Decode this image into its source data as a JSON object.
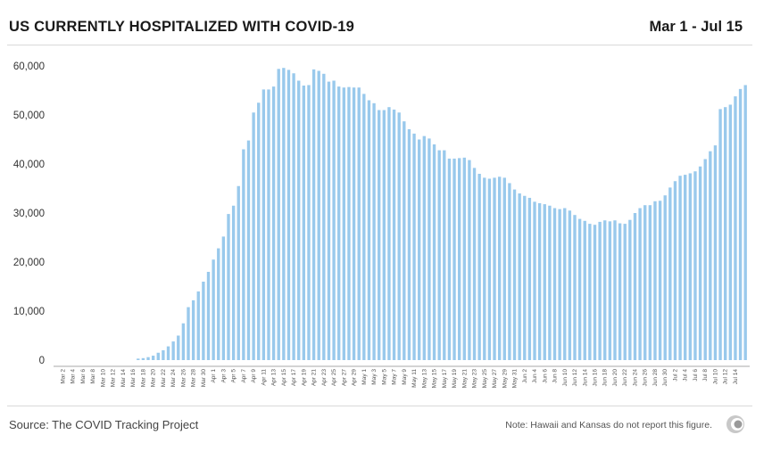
{
  "header": {
    "title": "US CURRENTLY HOSPITALIZED WITH COVID-19",
    "date_range": "Mar 1 - Jul 15"
  },
  "footer": {
    "source": "Source: The COVID Tracking Project",
    "note": "Note: Hawaii and Kansas do not report this figure."
  },
  "logo": {
    "icon": "covid-tracking-project-logo-icon"
  },
  "colors": {
    "bar": "#99c9ec",
    "axis": "#999999",
    "text": "#1a1a1a"
  },
  "chart_data": {
    "type": "bar",
    "title": "US CURRENTLY HOSPITALIZED WITH COVID-19",
    "xlabel": "",
    "ylabel": "",
    "ylim": [
      0,
      60000
    ],
    "yticks": [
      0,
      10000,
      20000,
      30000,
      40000,
      50000,
      60000
    ],
    "ytick_labels": [
      "0",
      "10,000",
      "20,000",
      "30,000",
      "40,000",
      "50,000",
      "60,000"
    ],
    "grid": false,
    "x_tick_labels": [
      "Mar 2",
      "Mar 4",
      "Mar 6",
      "Mar 8",
      "Mar 10",
      "Mar 12",
      "Mar 14",
      "Mar 16",
      "Mar 18",
      "Mar 20",
      "Mar 22",
      "Mar 24",
      "Mar 26",
      "Mar 28",
      "Mar 30",
      "Apr 1",
      "Apr 3",
      "Apr 5",
      "Apr 7",
      "Apr 9",
      "Apr 11",
      "Apr 13",
      "Apr 15",
      "Apr 17",
      "Apr 19",
      "Apr 21",
      "Apr 23",
      "Apr 25",
      "Apr 27",
      "Apr 29",
      "May 1",
      "May 3",
      "May 5",
      "May 7",
      "May 9",
      "May 11",
      "May 13",
      "May 15",
      "May 17",
      "May 19",
      "May 21",
      "May 23",
      "May 25",
      "May 27",
      "May 29",
      "May 31",
      "Jun 2",
      "Jun 4",
      "Jun 6",
      "Jun 8",
      "Jun 10",
      "Jun 12",
      "Jun 14",
      "Jun 16",
      "Jun 18",
      "Jun 20",
      "Jun 22",
      "Jun 24",
      "Jun 26",
      "Jun 28",
      "Jun 30",
      "Jul 2",
      "Jul 4",
      "Jul 6",
      "Jul 8",
      "Jul 10",
      "Jul 12",
      "Jul 14"
    ],
    "series": [
      {
        "name": "Currently hospitalized",
        "start_date": "Mar 1",
        "values": [
          0,
          0,
          0,
          0,
          0,
          0,
          0,
          0,
          0,
          0,
          0,
          0,
          0,
          0,
          0,
          0,
          300,
          400,
          600,
          900,
          1500,
          2000,
          2800,
          3800,
          5000,
          7500,
          10800,
          12200,
          14000,
          16000,
          18000,
          20500,
          22800,
          25200,
          29800,
          31500,
          35500,
          43000,
          44800,
          50500,
          52500,
          55200,
          55200,
          55800,
          59400,
          59600,
          59200,
          58500,
          57000,
          56000,
          56100,
          59300,
          59000,
          58400,
          56800,
          57000,
          55800,
          55600,
          55700,
          55600,
          55600,
          54300,
          53000,
          52400,
          51000,
          51000,
          51600,
          51100,
          50500,
          48700,
          47100,
          46200,
          45000,
          45700,
          45200,
          44000,
          42800,
          42800,
          41100,
          41100,
          41200,
          41300,
          40800,
          39200,
          38000,
          37200,
          37000,
          37200,
          37400,
          37200,
          36100,
          34800,
          34000,
          33500,
          33100,
          32300,
          32000,
          31800,
          31500,
          31000,
          30800,
          31000,
          30500,
          29600,
          28800,
          28400,
          27800,
          27600,
          28200,
          28500,
          28300,
          28500,
          27900,
          27800,
          28600,
          30000,
          31000,
          31600,
          31600,
          32400,
          32500,
          33600,
          35200,
          36500,
          37600,
          37800,
          38100,
          38500,
          39500,
          41000,
          42600,
          43800,
          51200,
          51600,
          52100,
          53800,
          55300,
          56100
        ]
      }
    ]
  }
}
